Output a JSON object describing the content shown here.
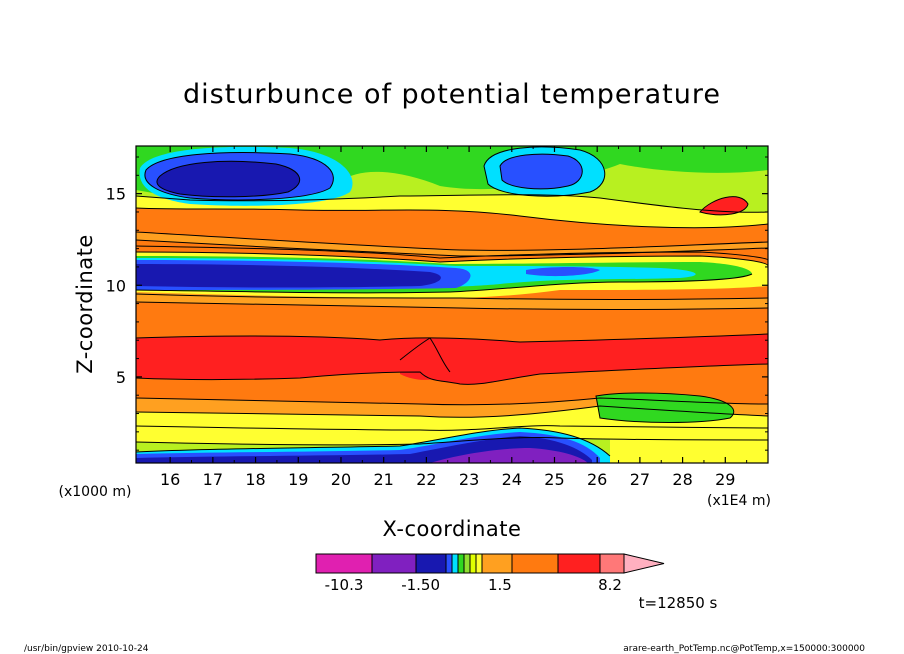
{
  "chart_data": {
    "type": "heatmap",
    "title": "disturbunce of potential temperature",
    "xlabel": "X-coordinate",
    "ylabel": "Z-coordinate",
    "x_unit": "(x1E4 m)",
    "y_unit": "(x1000 m)",
    "xlim": [
      15.2,
      30.0
    ],
    "ylim": [
      0.3,
      17.6
    ],
    "x_ticks": [
      "16",
      "17",
      "18",
      "19",
      "20",
      "21",
      "22",
      "23",
      "24",
      "25",
      "26",
      "27",
      "28",
      "29"
    ],
    "y_ticks": [
      "5",
      "10",
      "15"
    ],
    "x_tick_values": [
      16,
      17,
      18,
      19,
      20,
      21,
      22,
      23,
      24,
      25,
      26,
      27,
      28,
      29
    ],
    "y_tick_values": [
      5,
      10,
      15
    ],
    "colorbar": {
      "colors": [
        "#e020b0",
        "#8020c0",
        "#1818b0",
        "#2850ff",
        "#00e0ff",
        "#30d820",
        "#90e030",
        "#e0ff00",
        "#ffff30",
        "#ffa020",
        "#ff7a10",
        "#ff2020",
        "#ff7878",
        "#ffb0c0"
      ],
      "labels": [
        "-10.3",
        "-1.50",
        "1.5",
        "8.2"
      ]
    },
    "features": [
      {
        "kind": "warm",
        "value": 4.5,
        "z": [
          4.3,
          7.6
        ],
        "note": "strong warm layer (red)"
      },
      {
        "kind": "cold",
        "value": -4.0,
        "z": [
          9.6,
          11.6
        ],
        "x": [
          15.2,
          22.8
        ],
        "note": "cold tongue (blue)"
      },
      {
        "kind": "cold",
        "value": -3.0,
        "z": [
          14.5,
          17.0
        ],
        "x": [
          15.5,
          19.5
        ],
        "note": "upper cold cell"
      },
      {
        "kind": "cold",
        "value": -2.5,
        "z": [
          15.0,
          16.8
        ],
        "x": [
          23.0,
          25.5
        ],
        "note": "upper cold cell"
      },
      {
        "kind": "warm",
        "value": 4.5,
        "z": [
          13.5,
          14.8
        ],
        "x": [
          28.2,
          29.2
        ],
        "note": "upper warm cell"
      },
      {
        "kind": "cold",
        "value": -7.0,
        "z": [
          0.3,
          1.5
        ],
        "x": [
          15.2,
          26.0
        ],
        "note": "surface cold pool"
      }
    ]
  },
  "time_label": "t=12850 s",
  "footer_left": "/usr/bin/gpview   2010-10-24",
  "footer_right": "arare-earth_PotTemp.nc@PotTemp,x=150000:300000"
}
